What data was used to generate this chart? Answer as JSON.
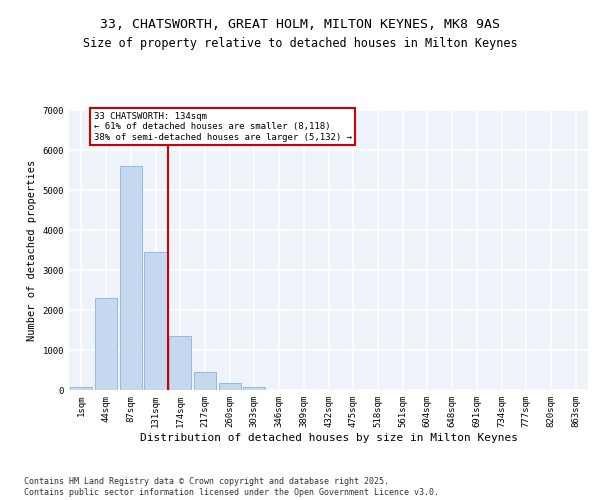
{
  "title1": "33, CHATSWORTH, GREAT HOLM, MILTON KEYNES, MK8 9AS",
  "title2": "Size of property relative to detached houses in Milton Keynes",
  "xlabel": "Distribution of detached houses by size in Milton Keynes",
  "ylabel": "Number of detached properties",
  "categories": [
    "1sqm",
    "44sqm",
    "87sqm",
    "131sqm",
    "174sqm",
    "217sqm",
    "260sqm",
    "303sqm",
    "346sqm",
    "389sqm",
    "432sqm",
    "475sqm",
    "518sqm",
    "561sqm",
    "604sqm",
    "648sqm",
    "691sqm",
    "734sqm",
    "777sqm",
    "820sqm",
    "863sqm"
  ],
  "values": [
    80,
    2300,
    5600,
    3450,
    1350,
    450,
    175,
    80,
    10,
    5,
    2,
    1,
    0,
    0,
    0,
    0,
    0,
    0,
    0,
    0,
    0
  ],
  "bar_color": "#c5d8f0",
  "bar_edge_color": "#8ab4d8",
  "vline_color": "#cc0000",
  "vline_pos": 3.5,
  "annotation_text": "33 CHATSWORTH: 134sqm\n← 61% of detached houses are smaller (8,118)\n38% of semi-detached houses are larger (5,132) →",
  "annotation_box_color": "#cc0000",
  "background_color": "#eef2f9",
  "grid_color": "#ffffff",
  "ylim": [
    0,
    7000
  ],
  "yticks": [
    0,
    1000,
    2000,
    3000,
    4000,
    5000,
    6000,
    7000
  ],
  "footnote": "Contains HM Land Registry data © Crown copyright and database right 2025.\nContains public sector information licensed under the Open Government Licence v3.0.",
  "title_fontsize": 9.5,
  "subtitle_fontsize": 8.5,
  "xlabel_fontsize": 8,
  "ylabel_fontsize": 7.5,
  "tick_fontsize": 6.5,
  "annotation_fontsize": 6.5,
  "footnote_fontsize": 6.0
}
